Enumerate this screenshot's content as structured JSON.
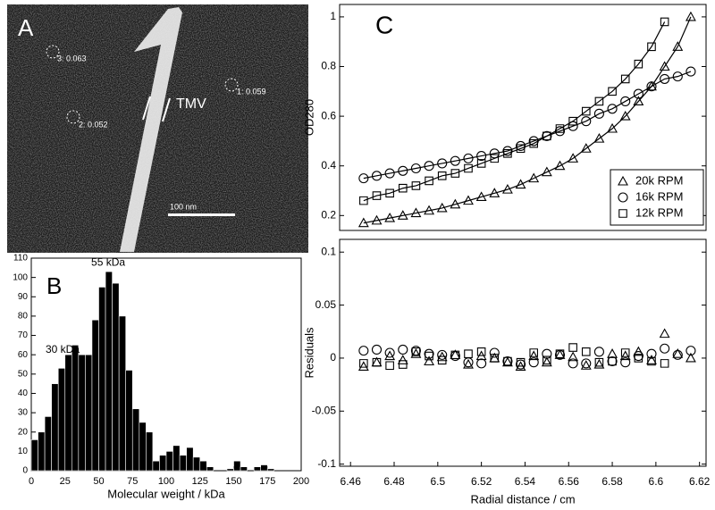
{
  "micrograph": {
    "label": "A",
    "particles": [
      "3: 0.063",
      "2: 0.052",
      "1: 0.059"
    ],
    "tmv_label": "TMV",
    "scale_bar": "100 nm"
  },
  "chart_data": [
    {
      "type": "histogram",
      "panel_label": "B",
      "xlabel": "Molecular weight / kDa",
      "annotations": [
        "55 kDa",
        "30 kDa"
      ],
      "color": "#000000",
      "bins": [
        0,
        5,
        10,
        15,
        20,
        25,
        30,
        35,
        40,
        45,
        50,
        55,
        60,
        65,
        70,
        75,
        80,
        85,
        90,
        95,
        100,
        105,
        110,
        115,
        120,
        125,
        130,
        135,
        140,
        145,
        150,
        155,
        160,
        165,
        170,
        175,
        180
      ],
      "values": [
        16,
        20,
        28,
        45,
        53,
        60,
        65,
        60,
        60,
        78,
        95,
        103,
        97,
        80,
        52,
        32,
        25,
        20,
        5,
        8,
        10,
        13,
        8,
        12,
        7,
        5,
        2,
        0,
        0,
        1,
        5,
        2,
        0,
        2,
        3,
        1
      ],
      "xlim": [
        0,
        200
      ],
      "xticks": [
        0,
        25,
        50,
        75,
        100,
        125,
        150,
        175,
        200
      ],
      "ylim": [
        0,
        110
      ],
      "yticks": [
        0,
        10,
        20,
        30,
        40,
        50,
        60,
        70,
        80,
        90,
        100,
        110
      ]
    },
    {
      "type": "scatter",
      "panel_label": "C",
      "ylabel": "OD280",
      "legend": "lower right",
      "line": true,
      "xlim": [
        6.455,
        6.623
      ],
      "ylim": [
        0.14,
        1.05
      ],
      "yticks": [
        0.2,
        0.4,
        0.6,
        0.8,
        1
      ],
      "series": [
        {
          "name": "20k RPM",
          "marker": "triangle",
          "color": "#000000",
          "x": [
            6.466,
            6.472,
            6.478,
            6.484,
            6.49,
            6.496,
            6.502,
            6.508,
            6.514,
            6.52,
            6.526,
            6.532,
            6.538,
            6.544,
            6.55,
            6.556,
            6.562,
            6.568,
            6.574,
            6.58,
            6.586,
            6.592,
            6.598,
            6.604,
            6.61,
            6.616
          ],
          "values": [
            0.17,
            0.18,
            0.19,
            0.2,
            0.21,
            0.22,
            0.23,
            0.245,
            0.26,
            0.275,
            0.29,
            0.305,
            0.325,
            0.35,
            0.375,
            0.4,
            0.43,
            0.47,
            0.51,
            0.55,
            0.6,
            0.66,
            0.72,
            0.8,
            0.88,
            1.0
          ]
        },
        {
          "name": "16k RPM",
          "marker": "circle",
          "color": "#000000",
          "x": [
            6.466,
            6.472,
            6.478,
            6.484,
            6.49,
            6.496,
            6.502,
            6.508,
            6.514,
            6.52,
            6.526,
            6.532,
            6.538,
            6.544,
            6.55,
            6.556,
            6.562,
            6.568,
            6.574,
            6.58,
            6.586,
            6.592,
            6.598,
            6.604,
            6.61,
            6.616
          ],
          "values": [
            0.35,
            0.36,
            0.37,
            0.38,
            0.39,
            0.4,
            0.41,
            0.42,
            0.43,
            0.44,
            0.45,
            0.46,
            0.48,
            0.5,
            0.52,
            0.54,
            0.56,
            0.58,
            0.61,
            0.63,
            0.66,
            0.69,
            0.72,
            0.75,
            0.76,
            0.78
          ]
        },
        {
          "name": "12k RPM",
          "marker": "square",
          "color": "#000000",
          "x": [
            6.466,
            6.472,
            6.478,
            6.484,
            6.49,
            6.496,
            6.502,
            6.508,
            6.514,
            6.52,
            6.526,
            6.532,
            6.538,
            6.544,
            6.55,
            6.556,
            6.562,
            6.568,
            6.574,
            6.58,
            6.586,
            6.592,
            6.598,
            6.604
          ],
          "values": [
            0.26,
            0.28,
            0.29,
            0.31,
            0.32,
            0.34,
            0.36,
            0.37,
            0.39,
            0.41,
            0.43,
            0.45,
            0.47,
            0.49,
            0.52,
            0.55,
            0.58,
            0.62,
            0.66,
            0.7,
            0.75,
            0.81,
            0.88,
            0.98
          ]
        }
      ]
    },
    {
      "type": "scatter",
      "ylabel": "Residuals",
      "xlabel": "Radial distance / cm",
      "line": false,
      "xlim": [
        6.455,
        6.623
      ],
      "xticks": [
        6.46,
        6.48,
        6.5,
        6.52,
        6.54,
        6.56,
        6.58,
        6.6,
        6.62
      ],
      "ylim": [
        -0.102,
        0.112
      ],
      "yticks": [
        -0.1,
        -0.05,
        0,
        0.05,
        0.1
      ],
      "series": [
        {
          "marker": "triangle",
          "color": "#000000",
          "x": [
            6.466,
            6.472,
            6.478,
            6.484,
            6.49,
            6.496,
            6.502,
            6.508,
            6.514,
            6.52,
            6.526,
            6.532,
            6.538,
            6.544,
            6.55,
            6.556,
            6.562,
            6.568,
            6.574,
            6.58,
            6.586,
            6.592,
            6.598,
            6.604,
            6.61,
            6.616
          ],
          "values": [
            -0.008,
            -0.004,
            0.002,
            -0.002,
            0.004,
            -0.003,
            0.001,
            0.003,
            -0.006,
            0.002,
            0,
            -0.004,
            -0.008,
            0.002,
            -0.004,
            0.003,
            0.001,
            -0.007,
            -0.006,
            0.004,
            0.002,
            0.006,
            -0.002,
            0.023,
            0.004,
            0
          ]
        },
        {
          "marker": "circle",
          "color": "#000000",
          "x": [
            6.466,
            6.472,
            6.478,
            6.484,
            6.49,
            6.496,
            6.502,
            6.508,
            6.514,
            6.52,
            6.526,
            6.532,
            6.538,
            6.544,
            6.55,
            6.556,
            6.562,
            6.568,
            6.574,
            6.58,
            6.586,
            6.592,
            6.598,
            6.604,
            6.61,
            6.616
          ],
          "values": [
            0.007,
            0.008,
            0.005,
            0.008,
            0.007,
            0.004,
            0.003,
            0.002,
            -0.004,
            -0.005,
            0.005,
            -0.003,
            -0.006,
            -0.004,
            0.004,
            0.003,
            -0.005,
            -0.005,
            0.006,
            -0.003,
            -0.004,
            0.002,
            0.004,
            0.009,
            0.003,
            0.007
          ]
        },
        {
          "marker": "square",
          "color": "#000000",
          "x": [
            6.466,
            6.472,
            6.478,
            6.484,
            6.49,
            6.496,
            6.502,
            6.508,
            6.514,
            6.52,
            6.526,
            6.532,
            6.538,
            6.544,
            6.55,
            6.556,
            6.562,
            6.568,
            6.574,
            6.58,
            6.586,
            6.592,
            6.598,
            6.604
          ],
          "values": [
            -0.005,
            -0.004,
            -0.007,
            -0.006,
            0.006,
            0.002,
            -0.002,
            0.003,
            0.004,
            0.006,
            0,
            -0.003,
            -0.004,
            0.005,
            -0.002,
            0.004,
            0.01,
            0.006,
            -0.004,
            -0.003,
            0.005,
            0,
            -0.003,
            -0.005
          ]
        }
      ]
    }
  ]
}
